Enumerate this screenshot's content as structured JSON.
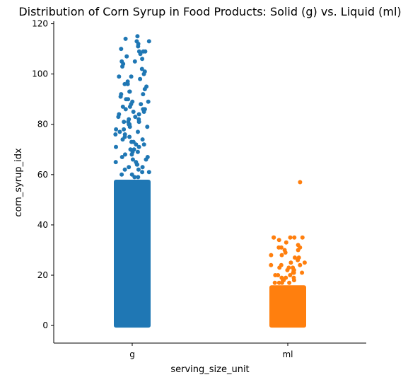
{
  "chart_data": {
    "type": "scatter",
    "title": "Distribution of Corn Syrup in Food Products: Solid (g) vs. Liquid (ml)",
    "xlabel": "serving_size_unit",
    "ylabel": "corn_syrup_idx",
    "categories": [
      "g",
      "ml"
    ],
    "ylim": [
      -7,
      121
    ],
    "yticks": [
      0,
      20,
      40,
      60,
      80,
      100,
      120
    ],
    "grid": false,
    "legend": "none",
    "series": [
      {
        "category": "g",
        "color": "#1f77b4",
        "dense_min": 0,
        "dense_max": 58,
        "values": [
          115,
          114,
          113,
          113,
          112,
          111,
          110,
          109,
          109,
          109,
          108,
          107,
          106,
          105,
          105,
          104,
          103,
          102,
          101,
          100,
          99,
          99,
          98,
          97,
          96,
          96,
          95,
          94,
          93,
          93,
          92,
          92,
          91,
          90,
          90,
          89,
          89,
          88,
          88,
          87,
          87,
          86,
          86,
          86,
          85,
          85,
          84,
          84,
          83,
          83,
          82,
          82,
          81,
          81,
          81,
          80,
          80,
          79,
          79,
          78,
          78,
          77,
          77,
          76,
          76,
          75,
          75,
          74,
          74,
          73,
          73,
          72,
          72,
          71,
          71,
          70,
          70,
          69,
          69,
          68,
          68,
          67,
          67,
          66,
          66,
          65,
          65,
          64,
          64,
          63,
          63,
          62,
          62,
          61,
          61,
          60,
          60,
          59,
          59
        ]
      },
      {
        "category": "ml",
        "color": "#ff7f0e",
        "dense_min": 0,
        "dense_max": 16,
        "values": [
          57,
          35,
          35,
          35,
          35,
          35,
          34,
          33,
          32,
          31,
          31,
          31,
          30,
          30,
          29,
          28,
          28,
          27,
          27,
          26,
          25,
          25,
          24,
          24,
          24,
          23,
          23,
          23,
          22,
          22,
          22,
          21,
          21,
          21,
          20,
          20,
          20,
          19,
          19,
          19,
          18,
          18,
          18,
          17,
          17,
          17,
          17
        ]
      }
    ]
  }
}
